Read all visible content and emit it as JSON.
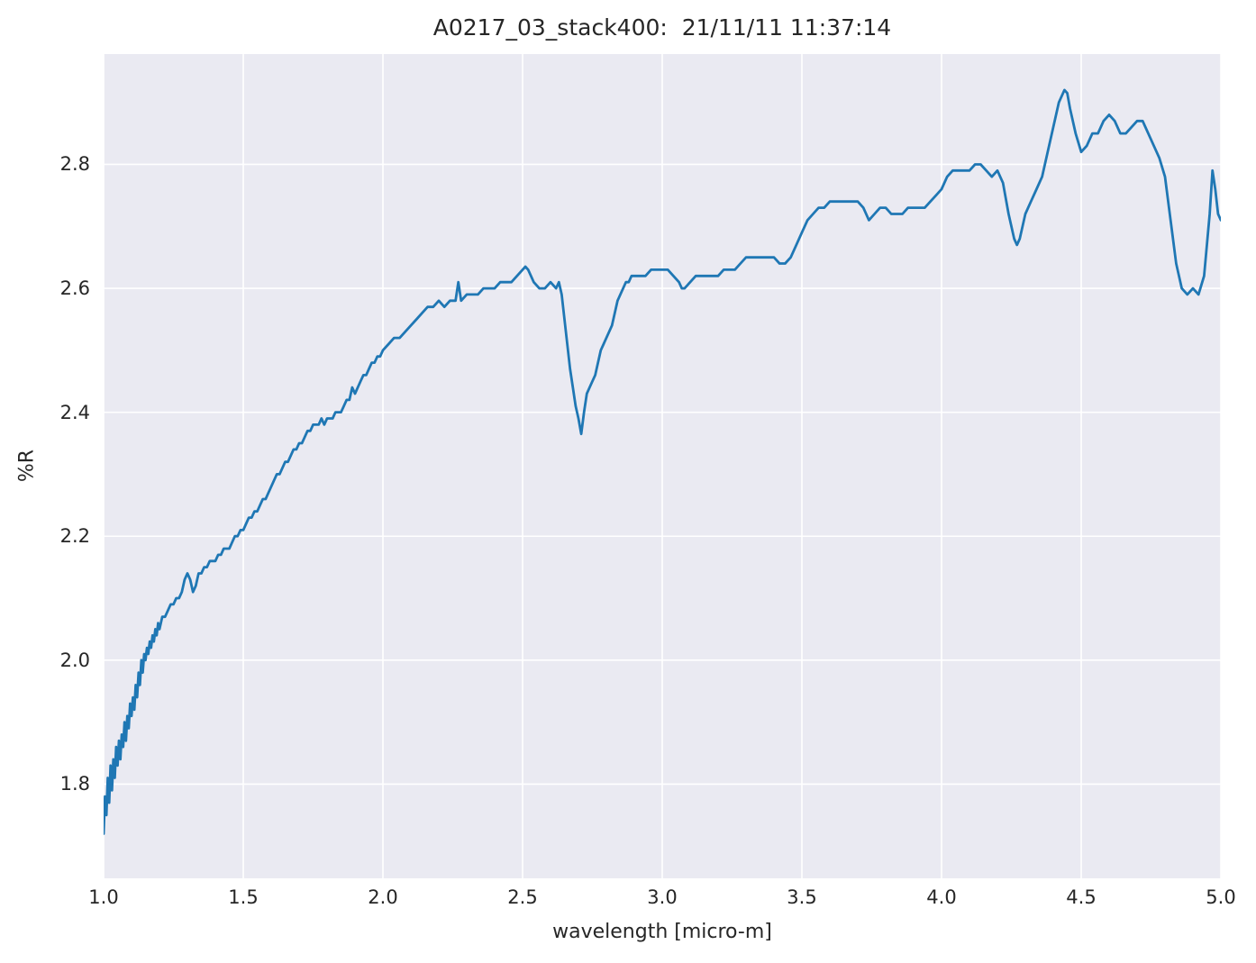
{
  "chart_data": {
    "type": "line",
    "title": "A0217_03_stack400:  21/11/11 11:37:14",
    "xlabel": "wavelength [micro-m]",
    "ylabel": "%R",
    "xlim": [
      1.0,
      5.0
    ],
    "ylim": [
      1.648,
      2.978
    ],
    "xticks": [
      1.0,
      1.5,
      2.0,
      2.5,
      3.0,
      3.5,
      4.0,
      4.5,
      5.0
    ],
    "xtick_labels": [
      "1.0",
      "1.5",
      "2.0",
      "2.5",
      "3.0",
      "3.5",
      "4.0",
      "4.5",
      "5.0"
    ],
    "yticks": [
      1.8,
      2.0,
      2.2,
      2.4,
      2.6,
      2.8
    ],
    "ytick_labels": [
      "1.8",
      "2.0",
      "2.2",
      "2.4",
      "2.6",
      "2.8"
    ],
    "grid": true,
    "legend": "none",
    "line_color": "#1f77b4",
    "plot_background": "#eaeaf2",
    "grid_color": "#ffffff",
    "series": [
      {
        "name": "A0217_03_stack400",
        "x": [
          1.0,
          1.005,
          1.01,
          1.015,
          1.02,
          1.025,
          1.03,
          1.035,
          1.04,
          1.045,
          1.05,
          1.055,
          1.06,
          1.065,
          1.07,
          1.075,
          1.08,
          1.085,
          1.09,
          1.095,
          1.1,
          1.105,
          1.11,
          1.115,
          1.12,
          1.125,
          1.13,
          1.135,
          1.14,
          1.145,
          1.15,
          1.155,
          1.16,
          1.165,
          1.17,
          1.175,
          1.18,
          1.185,
          1.19,
          1.195,
          1.2,
          1.21,
          1.22,
          1.23,
          1.24,
          1.25,
          1.26,
          1.27,
          1.28,
          1.29,
          1.3,
          1.31,
          1.32,
          1.33,
          1.34,
          1.35,
          1.36,
          1.37,
          1.38,
          1.39,
          1.4,
          1.41,
          1.42,
          1.43,
          1.44,
          1.45,
          1.46,
          1.47,
          1.48,
          1.49,
          1.5,
          1.51,
          1.52,
          1.53,
          1.54,
          1.55,
          1.56,
          1.57,
          1.58,
          1.59,
          1.6,
          1.61,
          1.62,
          1.63,
          1.64,
          1.65,
          1.66,
          1.67,
          1.68,
          1.69,
          1.7,
          1.71,
          1.72,
          1.73,
          1.74,
          1.75,
          1.76,
          1.77,
          1.78,
          1.79,
          1.8,
          1.81,
          1.82,
          1.83,
          1.84,
          1.85,
          1.86,
          1.87,
          1.88,
          1.89,
          1.9,
          1.91,
          1.92,
          1.93,
          1.94,
          1.95,
          1.96,
          1.97,
          1.98,
          1.99,
          2.0,
          2.02,
          2.04,
          2.06,
          2.08,
          2.1,
          2.12,
          2.14,
          2.16,
          2.18,
          2.2,
          2.22,
          2.24,
          2.26,
          2.27,
          2.28,
          2.3,
          2.32,
          2.34,
          2.36,
          2.38,
          2.4,
          2.42,
          2.44,
          2.46,
          2.48,
          2.5,
          2.51,
          2.52,
          2.54,
          2.56,
          2.58,
          2.6,
          2.62,
          2.63,
          2.64,
          2.65,
          2.66,
          2.67,
          2.68,
          2.69,
          2.7,
          2.71,
          2.72,
          2.73,
          2.74,
          2.75,
          2.76,
          2.77,
          2.78,
          2.79,
          2.8,
          2.81,
          2.82,
          2.83,
          2.84,
          2.85,
          2.86,
          2.87,
          2.88,
          2.89,
          2.9,
          2.92,
          2.94,
          2.96,
          2.98,
          3.0,
          3.02,
          3.04,
          3.06,
          3.07,
          3.08,
          3.1,
          3.12,
          3.14,
          3.16,
          3.18,
          3.2,
          3.22,
          3.24,
          3.26,
          3.28,
          3.3,
          3.32,
          3.34,
          3.36,
          3.38,
          3.4,
          3.42,
          3.44,
          3.46,
          3.48,
          3.5,
          3.52,
          3.54,
          3.56,
          3.58,
          3.6,
          3.62,
          3.64,
          3.66,
          3.68,
          3.7,
          3.72,
          3.74,
          3.76,
          3.78,
          3.8,
          3.82,
          3.84,
          3.86,
          3.88,
          3.9,
          3.92,
          3.94,
          3.96,
          3.98,
          4.0,
          4.02,
          4.04,
          4.06,
          4.08,
          4.1,
          4.12,
          4.14,
          4.16,
          4.18,
          4.2,
          4.22,
          4.24,
          4.26,
          4.27,
          4.28,
          4.3,
          4.32,
          4.34,
          4.36,
          4.38,
          4.4,
          4.42,
          4.44,
          4.45,
          4.46,
          4.48,
          4.5,
          4.52,
          4.54,
          4.56,
          4.58,
          4.6,
          4.62,
          4.64,
          4.66,
          4.68,
          4.7,
          4.72,
          4.74,
          4.76,
          4.78,
          4.8,
          4.82,
          4.84,
          4.86,
          4.88,
          4.9,
          4.92,
          4.94,
          4.96,
          4.97,
          4.98,
          4.99,
          5.0
        ],
        "y": [
          1.72,
          1.78,
          1.75,
          1.81,
          1.77,
          1.83,
          1.79,
          1.84,
          1.81,
          1.86,
          1.83,
          1.87,
          1.84,
          1.88,
          1.86,
          1.9,
          1.87,
          1.91,
          1.89,
          1.93,
          1.91,
          1.94,
          1.92,
          1.96,
          1.94,
          1.98,
          1.96,
          2.0,
          1.98,
          2.01,
          2.0,
          2.02,
          2.01,
          2.03,
          2.02,
          2.04,
          2.03,
          2.05,
          2.04,
          2.06,
          2.05,
          2.07,
          2.07,
          2.08,
          2.09,
          2.09,
          2.1,
          2.1,
          2.11,
          2.13,
          2.14,
          2.13,
          2.11,
          2.12,
          2.14,
          2.14,
          2.15,
          2.15,
          2.16,
          2.16,
          2.16,
          2.17,
          2.17,
          2.18,
          2.18,
          2.18,
          2.19,
          2.2,
          2.2,
          2.21,
          2.21,
          2.22,
          2.23,
          2.23,
          2.24,
          2.24,
          2.25,
          2.26,
          2.26,
          2.27,
          2.28,
          2.29,
          2.3,
          2.3,
          2.31,
          2.32,
          2.32,
          2.33,
          2.34,
          2.34,
          2.35,
          2.35,
          2.36,
          2.37,
          2.37,
          2.38,
          2.38,
          2.38,
          2.39,
          2.38,
          2.39,
          2.39,
          2.39,
          2.4,
          2.4,
          2.4,
          2.41,
          2.42,
          2.42,
          2.44,
          2.43,
          2.44,
          2.45,
          2.46,
          2.46,
          2.47,
          2.48,
          2.48,
          2.49,
          2.49,
          2.5,
          2.51,
          2.52,
          2.52,
          2.53,
          2.54,
          2.55,
          2.56,
          2.57,
          2.57,
          2.58,
          2.57,
          2.58,
          2.58,
          2.61,
          2.58,
          2.59,
          2.59,
          2.59,
          2.6,
          2.6,
          2.6,
          2.61,
          2.61,
          2.61,
          2.62,
          2.63,
          2.635,
          2.63,
          2.61,
          2.6,
          2.6,
          2.61,
          2.6,
          2.61,
          2.59,
          2.55,
          2.51,
          2.47,
          2.44,
          2.41,
          2.39,
          2.365,
          2.4,
          2.43,
          2.44,
          2.45,
          2.46,
          2.48,
          2.5,
          2.51,
          2.52,
          2.53,
          2.54,
          2.56,
          2.58,
          2.59,
          2.6,
          2.61,
          2.61,
          2.62,
          2.62,
          2.62,
          2.62,
          2.63,
          2.63,
          2.63,
          2.63,
          2.62,
          2.61,
          2.6,
          2.6,
          2.61,
          2.62,
          2.62,
          2.62,
          2.62,
          2.62,
          2.63,
          2.63,
          2.63,
          2.64,
          2.65,
          2.65,
          2.65,
          2.65,
          2.65,
          2.65,
          2.64,
          2.64,
          2.65,
          2.67,
          2.69,
          2.71,
          2.72,
          2.73,
          2.73,
          2.74,
          2.74,
          2.74,
          2.74,
          2.74,
          2.74,
          2.73,
          2.71,
          2.72,
          2.73,
          2.73,
          2.72,
          2.72,
          2.72,
          2.73,
          2.73,
          2.73,
          2.73,
          2.74,
          2.75,
          2.76,
          2.78,
          2.79,
          2.79,
          2.79,
          2.79,
          2.8,
          2.8,
          2.79,
          2.78,
          2.79,
          2.77,
          2.72,
          2.68,
          2.67,
          2.68,
          2.72,
          2.74,
          2.76,
          2.78,
          2.82,
          2.86,
          2.9,
          2.92,
          2.915,
          2.89,
          2.85,
          2.82,
          2.83,
          2.85,
          2.85,
          2.87,
          2.88,
          2.87,
          2.85,
          2.85,
          2.86,
          2.87,
          2.87,
          2.85,
          2.83,
          2.81,
          2.78,
          2.71,
          2.64,
          2.6,
          2.59,
          2.6,
          2.59,
          2.62,
          2.72,
          2.79,
          2.76,
          2.72,
          2.71
        ]
      }
    ]
  }
}
